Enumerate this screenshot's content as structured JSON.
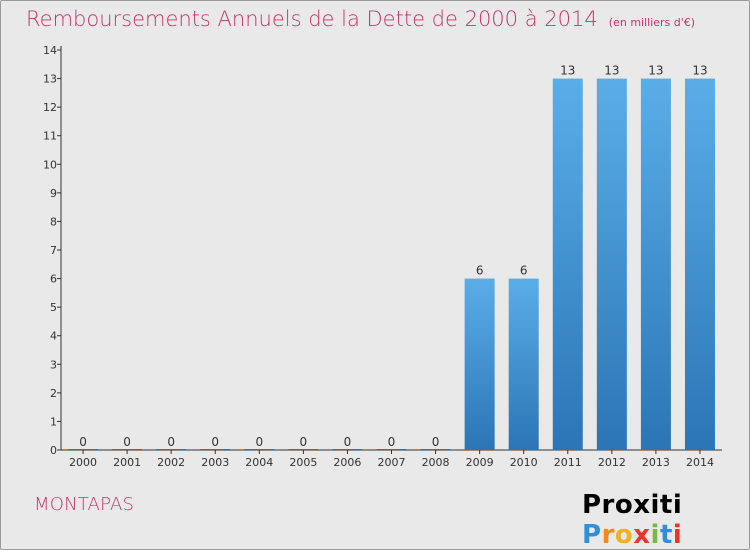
{
  "title": "Remboursements Annuels de la Dette de 2000 à 2014",
  "subtitle": "(en milliers d'€)",
  "commune": "MONTAPAS",
  "logo": "Proxiti",
  "colors": {
    "title": "#c8326e",
    "bar_light": "#5aaee8",
    "bar_dark": "#2b75b6",
    "axis": "#333333",
    "background": "#e9e9e9"
  },
  "chart_data": {
    "type": "bar",
    "categories": [
      "2000",
      "2001",
      "2002",
      "2003",
      "2004",
      "2005",
      "2006",
      "2007",
      "2008",
      "2009",
      "2010",
      "2011",
      "2012",
      "2013",
      "2014"
    ],
    "values": [
      0,
      0,
      0,
      0,
      0,
      0,
      0,
      0,
      0,
      6,
      6,
      13,
      13,
      13,
      13
    ],
    "data_labels": [
      "0",
      "0",
      "0",
      "0",
      "0",
      "0",
      "0",
      "0",
      "0",
      "6",
      "6",
      "13",
      "13",
      "13",
      "13"
    ],
    "y_ticks": [
      0,
      1,
      2,
      3,
      4,
      5,
      6,
      7,
      8,
      9,
      10,
      11,
      12,
      13,
      14
    ],
    "ylim": [
      0,
      14
    ],
    "title": "Remboursements Annuels de la Dette de 2000 à 2014",
    "xlabel": "",
    "ylabel": "",
    "grid": false,
    "legend": "none"
  }
}
